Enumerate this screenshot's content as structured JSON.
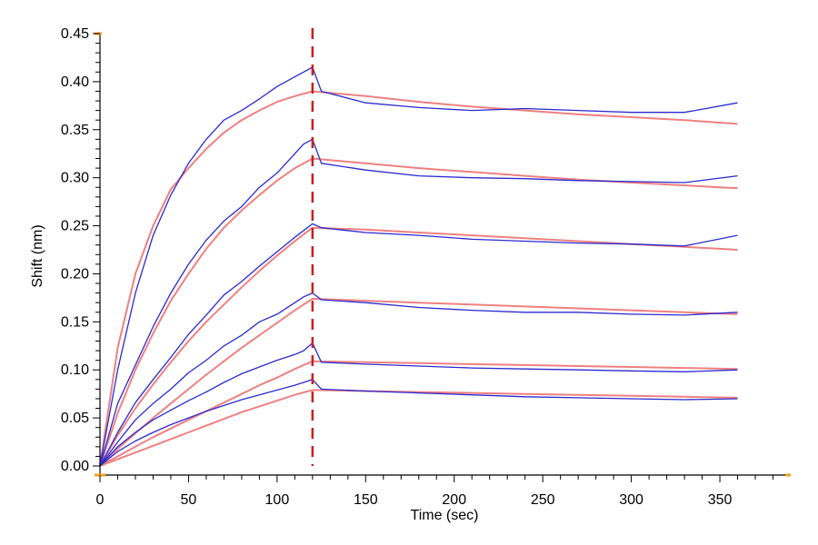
{
  "chart_data": {
    "type": "line",
    "title": "",
    "xlabel": "Time (sec)",
    "ylabel": "Shift (nm)",
    "xlim": [
      0,
      390
    ],
    "ylim": [
      0,
      0.45
    ],
    "x_ticks": [
      0,
      50,
      100,
      150,
      200,
      250,
      300,
      350
    ],
    "x_tick_labels": [
      "0",
      "50",
      "100",
      "150",
      "200",
      "250",
      "300",
      "350"
    ],
    "y_ticks": [
      0,
      0.05,
      0.1,
      0.15,
      0.2,
      0.25,
      0.3,
      0.35,
      0.4,
      0.45
    ],
    "y_tick_labels": [
      "0.00",
      "0.05",
      "0.10",
      "0.15",
      "0.20",
      "0.25",
      "0.30",
      "0.35",
      "0.40",
      "0.45"
    ],
    "grid": false,
    "legend": "none",
    "dissociation_start": 120,
    "colors": {
      "measured": "#2a2ad0",
      "fit": "#f08080",
      "marker": "#c81e1e",
      "axis_end": "#f0a020"
    },
    "series": [
      {
        "kind": "fit",
        "x": [
          0,
          10,
          20,
          30,
          40,
          50,
          60,
          70,
          80,
          90,
          100,
          110,
          120,
          150,
          180,
          210,
          240,
          270,
          300,
          330,
          360
        ],
        "y": [
          0.0,
          0.123,
          0.2,
          0.25,
          0.288,
          0.31,
          0.33,
          0.347,
          0.36,
          0.37,
          0.379,
          0.385,
          0.39,
          0.385,
          0.379,
          0.374,
          0.37,
          0.366,
          0.363,
          0.36,
          0.356
        ]
      },
      {
        "kind": "measured",
        "x": [
          0,
          10,
          20,
          30,
          40,
          50,
          60,
          70,
          80,
          90,
          100,
          110,
          115,
          120,
          125,
          150,
          180,
          210,
          240,
          270,
          300,
          330,
          360
        ],
        "y": [
          0.0,
          0.1,
          0.18,
          0.24,
          0.282,
          0.315,
          0.34,
          0.36,
          0.37,
          0.382,
          0.395,
          0.405,
          0.41,
          0.415,
          0.39,
          0.378,
          0.373,
          0.37,
          0.372,
          0.37,
          0.368,
          0.368,
          0.378
        ]
      },
      {
        "kind": "fit",
        "x": [
          0,
          10,
          20,
          30,
          40,
          50,
          60,
          70,
          80,
          90,
          100,
          110,
          120,
          150,
          180,
          210,
          240,
          270,
          300,
          330,
          360
        ],
        "y": [
          0.0,
          0.055,
          0.1,
          0.138,
          0.172,
          0.2,
          0.226,
          0.248,
          0.266,
          0.282,
          0.297,
          0.31,
          0.32,
          0.315,
          0.31,
          0.306,
          0.302,
          0.298,
          0.295,
          0.292,
          0.289
        ]
      },
      {
        "kind": "measured",
        "x": [
          0,
          10,
          20,
          30,
          40,
          50,
          60,
          70,
          80,
          90,
          100,
          110,
          115,
          120,
          125,
          150,
          180,
          210,
          240,
          270,
          300,
          330,
          360
        ],
        "y": [
          0.0,
          0.065,
          0.105,
          0.145,
          0.18,
          0.21,
          0.235,
          0.255,
          0.27,
          0.29,
          0.305,
          0.325,
          0.335,
          0.34,
          0.315,
          0.308,
          0.302,
          0.3,
          0.299,
          0.297,
          0.296,
          0.295,
          0.302
        ]
      },
      {
        "kind": "fit",
        "x": [
          0,
          10,
          20,
          30,
          40,
          50,
          60,
          70,
          80,
          90,
          100,
          110,
          120,
          150,
          180,
          210,
          240,
          270,
          300,
          330,
          360
        ],
        "y": [
          0.0,
          0.032,
          0.06,
          0.085,
          0.108,
          0.13,
          0.15,
          0.168,
          0.186,
          0.203,
          0.219,
          0.234,
          0.248,
          0.246,
          0.243,
          0.24,
          0.237,
          0.234,
          0.231,
          0.228,
          0.225
        ]
      },
      {
        "kind": "measured",
        "x": [
          0,
          10,
          20,
          30,
          40,
          50,
          60,
          70,
          80,
          90,
          100,
          110,
          115,
          120,
          125,
          150,
          180,
          210,
          240,
          270,
          300,
          330,
          360
        ],
        "y": [
          0.0,
          0.035,
          0.066,
          0.09,
          0.113,
          0.137,
          0.157,
          0.178,
          0.192,
          0.208,
          0.223,
          0.238,
          0.245,
          0.252,
          0.248,
          0.243,
          0.24,
          0.236,
          0.234,
          0.232,
          0.231,
          0.229,
          0.24
        ]
      },
      {
        "kind": "fit",
        "x": [
          0,
          10,
          20,
          30,
          40,
          50,
          60,
          70,
          80,
          90,
          100,
          110,
          120,
          150,
          180,
          210,
          240,
          270,
          300,
          330,
          360
        ],
        "y": [
          0.0,
          0.018,
          0.034,
          0.05,
          0.065,
          0.08,
          0.095,
          0.109,
          0.123,
          0.136,
          0.149,
          0.162,
          0.174,
          0.172,
          0.17,
          0.168,
          0.166,
          0.164,
          0.162,
          0.16,
          0.158
        ]
      },
      {
        "kind": "measured",
        "x": [
          0,
          10,
          20,
          30,
          40,
          50,
          60,
          70,
          80,
          90,
          100,
          110,
          115,
          120,
          125,
          150,
          180,
          210,
          240,
          270,
          300,
          330,
          360
        ],
        "y": [
          0.0,
          0.025,
          0.048,
          0.065,
          0.08,
          0.097,
          0.11,
          0.125,
          0.136,
          0.15,
          0.158,
          0.17,
          0.176,
          0.18,
          0.173,
          0.17,
          0.165,
          0.162,
          0.16,
          0.16,
          0.158,
          0.157,
          0.16
        ]
      },
      {
        "kind": "fit",
        "x": [
          0,
          10,
          20,
          30,
          40,
          50,
          60,
          70,
          80,
          90,
          100,
          110,
          120,
          150,
          180,
          210,
          240,
          270,
          300,
          330,
          360
        ],
        "y": [
          0.0,
          0.01,
          0.02,
          0.03,
          0.039,
          0.048,
          0.057,
          0.066,
          0.075,
          0.084,
          0.092,
          0.101,
          0.109,
          0.108,
          0.107,
          0.106,
          0.105,
          0.104,
          0.103,
          0.102,
          0.101
        ]
      },
      {
        "kind": "measured",
        "x": [
          0,
          10,
          20,
          30,
          40,
          50,
          60,
          70,
          80,
          90,
          100,
          110,
          115,
          120,
          125,
          150,
          180,
          210,
          240,
          270,
          300,
          330,
          360
        ],
        "y": [
          0.0,
          0.02,
          0.035,
          0.048,
          0.058,
          0.068,
          0.077,
          0.087,
          0.096,
          0.103,
          0.11,
          0.116,
          0.12,
          0.128,
          0.108,
          0.106,
          0.104,
          0.102,
          0.101,
          0.1,
          0.099,
          0.098,
          0.1
        ]
      },
      {
        "kind": "fit",
        "x": [
          0,
          10,
          20,
          30,
          40,
          50,
          60,
          70,
          80,
          90,
          100,
          110,
          120,
          150,
          180,
          210,
          240,
          270,
          300,
          330,
          360
        ],
        "y": [
          0.0,
          0.007,
          0.014,
          0.021,
          0.028,
          0.035,
          0.042,
          0.049,
          0.056,
          0.062,
          0.068,
          0.074,
          0.079,
          0.078,
          0.077,
          0.076,
          0.075,
          0.074,
          0.073,
          0.072,
          0.071
        ]
      },
      {
        "kind": "measured",
        "x": [
          0,
          10,
          20,
          30,
          40,
          50,
          60,
          70,
          80,
          90,
          100,
          110,
          115,
          120,
          125,
          150,
          180,
          210,
          240,
          270,
          300,
          330,
          360
        ],
        "y": [
          0.0,
          0.015,
          0.026,
          0.035,
          0.043,
          0.05,
          0.057,
          0.063,
          0.069,
          0.074,
          0.079,
          0.084,
          0.087,
          0.09,
          0.08,
          0.078,
          0.076,
          0.074,
          0.072,
          0.071,
          0.07,
          0.069,
          0.07
        ]
      }
    ]
  }
}
